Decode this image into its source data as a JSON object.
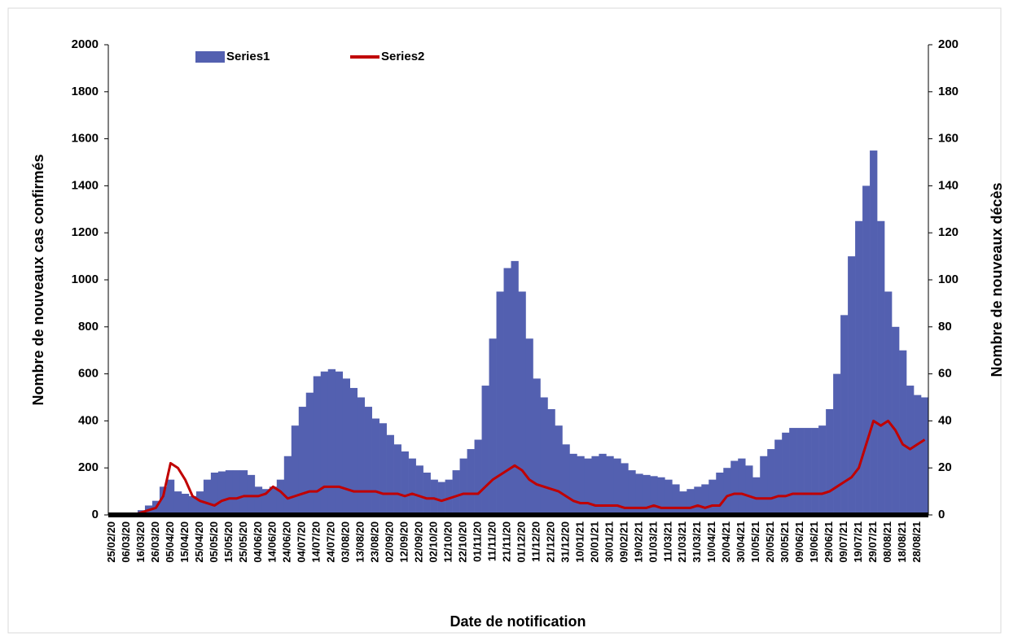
{
  "chart_data": {
    "type": "bar_line",
    "xlabel": "Date de notification",
    "ylabel": "Nombre de nouveaux cas confirmés",
    "y2label": "Nombre de nouveaux décès",
    "categories": [
      "25/02/20",
      null,
      "06/03/20",
      null,
      "16/03/20",
      null,
      "26/03/20",
      null,
      "05/04/20",
      null,
      "15/04/20",
      null,
      "25/04/20",
      null,
      "05/05/20",
      null,
      "15/05/20",
      null,
      "25/05/20",
      null,
      "04/06/20",
      null,
      "14/06/20",
      null,
      "24/06/20",
      null,
      "04/07/20",
      null,
      "14/07/20",
      null,
      "24/07/20",
      null,
      "03/08/20",
      null,
      "13/08/20",
      null,
      "23/08/20",
      null,
      "02/09/20",
      null,
      "12/09/20",
      null,
      "22/09/20",
      null,
      "02/10/20",
      null,
      "12/10/20",
      null,
      "22/10/20",
      null,
      "01/11/20",
      null,
      "11/11/20",
      null,
      "21/11/20",
      null,
      "01/12/20",
      null,
      "11/12/20",
      null,
      "21/12/20",
      null,
      "31/12/20",
      null,
      "10/01/21",
      null,
      "20/01/21",
      null,
      "30/01/21",
      null,
      "09/02/21",
      null,
      "19/02/21",
      null,
      "01/03/21",
      null,
      "11/03/21",
      null,
      "21/03/21",
      null,
      "31/03/21",
      null,
      "10/04/21",
      null,
      "20/04/21",
      null,
      "30/04/21",
      null,
      "10/05/21",
      null,
      "20/05/21",
      null,
      "30/05/21",
      null,
      "09/06/21",
      null,
      "19/06/21",
      null,
      "29/06/21",
      null,
      "09/07/21",
      null,
      "19/07/21",
      null,
      "29/07/21",
      null,
      "08/08/21",
      null,
      "18/08/21",
      null,
      "28/08/21",
      null
    ],
    "series": [
      {
        "name": "Series1",
        "color": "#5360b0",
        "values": [
          0,
          0,
          2,
          5,
          20,
          40,
          60,
          120,
          150,
          100,
          90,
          80,
          100,
          150,
          180,
          185,
          190,
          190,
          190,
          170,
          120,
          110,
          120,
          150,
          250,
          380,
          460,
          520,
          590,
          610,
          620,
          610,
          580,
          540,
          500,
          460,
          410,
          390,
          340,
          300,
          270,
          240,
          210,
          180,
          150,
          140,
          150,
          190,
          240,
          280,
          320,
          550,
          750,
          950,
          1050,
          1080,
          950,
          750,
          580,
          500,
          450,
          380,
          300,
          260,
          250,
          240,
          250,
          260,
          250,
          240,
          220,
          190,
          175,
          170,
          165,
          160,
          150,
          130,
          100,
          110,
          120,
          130,
          150,
          180,
          200,
          230,
          240,
          210,
          160,
          250,
          280,
          320,
          350,
          370,
          370,
          370,
          370,
          380,
          450,
          600,
          850,
          1100,
          1250,
          1400,
          1550,
          1250,
          950,
          800,
          700,
          550,
          510,
          500
        ]
      },
      {
        "name": "Series2",
        "color": "#c00000",
        "axis": "y2",
        "values": [
          0,
          0,
          0,
          0,
          1,
          2,
          3,
          8,
          22,
          20,
          15,
          8,
          6,
          5,
          4,
          6,
          7,
          7,
          8,
          8,
          8,
          9,
          12,
          10,
          7,
          8,
          9,
          10,
          10,
          12,
          12,
          12,
          11,
          10,
          10,
          10,
          10,
          9,
          9,
          9,
          8,
          9,
          8,
          7,
          7,
          6,
          7,
          8,
          9,
          9,
          9,
          12,
          15,
          17,
          19,
          21,
          19,
          15,
          13,
          12,
          11,
          10,
          8,
          6,
          5,
          5,
          4,
          4,
          4,
          4,
          3,
          3,
          3,
          3,
          4,
          3,
          3,
          3,
          3,
          3,
          4,
          3,
          4,
          4,
          8,
          9,
          9,
          8,
          7,
          7,
          7,
          8,
          8,
          9,
          9,
          9,
          9,
          9,
          10,
          12,
          14,
          16,
          20,
          30,
          40,
          38,
          40,
          36,
          30,
          28,
          30,
          32
        ]
      }
    ],
    "ylim": [
      0,
      2000
    ],
    "yticks": [
      0,
      200,
      400,
      600,
      800,
      1000,
      1200,
      1400,
      1600,
      1800,
      2000
    ],
    "y2lim": [
      0,
      200
    ],
    "y2ticks": [
      0,
      20,
      40,
      60,
      80,
      100,
      120,
      140,
      160,
      180,
      200
    ],
    "grid": false
  }
}
